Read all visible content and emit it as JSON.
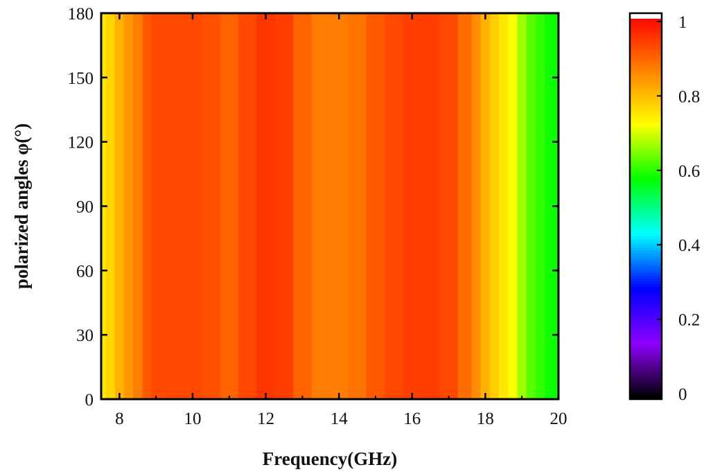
{
  "chart_data": {
    "type": "heatmap",
    "title": "",
    "xlabel": "Frequency(GHz)",
    "ylabel": "polarized angles φ(°)",
    "xlim": [
      7.5,
      20
    ],
    "ylim": [
      0,
      180
    ],
    "xticks": [
      "8",
      "10",
      "12",
      "14",
      "16",
      "18",
      "20"
    ],
    "yticks": [
      "0",
      "30",
      "60",
      "90",
      "120",
      "150",
      "180"
    ],
    "colorbar": {
      "range": [
        0,
        1
      ],
      "ticks": [
        "0",
        "0.2",
        "0.4",
        "0.6",
        "0.8",
        "1"
      ],
      "colormap": [
        "#000000",
        "#8f00ff",
        "#0000ff",
        "#00ffff",
        "#00ff00",
        "#ffff00",
        "#ff8000",
        "#ff0000",
        "#ffffff"
      ]
    },
    "grid": false,
    "frequency_ghz": [
      7.5,
      7.75,
      8.0,
      8.25,
      8.5,
      8.75,
      9.0,
      9.5,
      10.0,
      10.5,
      11.0,
      11.5,
      12.0,
      12.5,
      13.0,
      13.5,
      14.0,
      14.5,
      15.0,
      15.5,
      16.0,
      16.5,
      17.0,
      17.5,
      17.75,
      18.0,
      18.25,
      18.5,
      18.75,
      19.0,
      19.25,
      19.5,
      19.75,
      20.0
    ],
    "values_constant_over_angle": [
      0.74,
      0.76,
      0.8,
      0.83,
      0.86,
      0.9,
      0.92,
      0.92,
      0.92,
      0.91,
      0.89,
      0.92,
      0.94,
      0.93,
      0.89,
      0.86,
      0.86,
      0.87,
      0.9,
      0.92,
      0.93,
      0.93,
      0.92,
      0.88,
      0.84,
      0.8,
      0.77,
      0.74,
      0.71,
      0.66,
      0.62,
      0.6,
      0.58,
      0.57
    ]
  }
}
